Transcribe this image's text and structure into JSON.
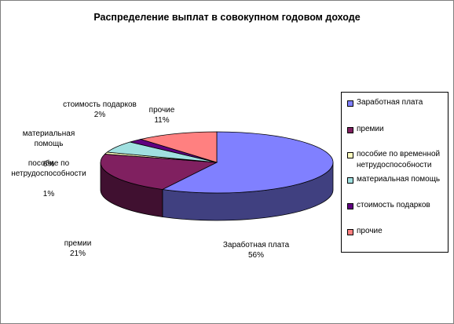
{
  "chart_data": {
    "type": "pie",
    "title": "Распределение выплат в совокупном годовом доходе",
    "slices": [
      {
        "name": "Заработная плата",
        "value": 56,
        "label": "56%",
        "color": "#8080ff"
      },
      {
        "name": "премии",
        "value": 21,
        "label": "21%",
        "color": "#802060"
      },
      {
        "name": "пособие по временной нетрудоспособности",
        "value": 1,
        "label": "1%",
        "color": "#ffffc0"
      },
      {
        "name": "материальная помощь",
        "value": 6,
        "label": "6%",
        "color": "#a0e0e0"
      },
      {
        "name": "стоимость подарков",
        "value": 2,
        "label": "2%",
        "color": "#600080"
      },
      {
        "name": "прочие",
        "value": 11,
        "label": "11%",
        "color": "#ff8080"
      }
    ],
    "data_labels": [
      {
        "name": "Заработная плата",
        "pct": "56%"
      },
      {
        "name": "премии",
        "pct": "21%"
      },
      {
        "name": "пособие по\nнетрудоспособности",
        "pct": "1%"
      },
      {
        "name": "материальная\nпомощь",
        "pct": "6%"
      },
      {
        "name": "стоимость подарков",
        "pct": "2%"
      },
      {
        "name": "прочие",
        "pct": "11%"
      }
    ],
    "legend": {
      "placement": "right",
      "entries": [
        "Заработная плата",
        "премии",
        "пособие по временной\nнетрудоспособности",
        "материальная помощь",
        "стоимость подарков",
        "прочие"
      ]
    }
  }
}
